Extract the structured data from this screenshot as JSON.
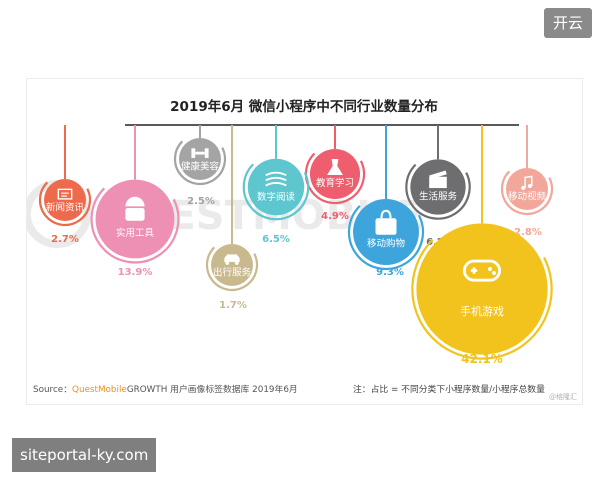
{
  "header": {
    "button_label": "开云"
  },
  "footer": {
    "link_text": "siteportal-ky.com"
  },
  "chart_data": {
    "type": "bubble",
    "title": "2019年6月 微信小程序中不同行业数量分布",
    "unit": "%",
    "categories": [
      "新闻资讯",
      "实用工具",
      "健康美容",
      "出行服务",
      "数字阅读",
      "教育学习",
      "移动购物",
      "生活服务",
      "手机游戏",
      "移动视频"
    ],
    "values": [
      2.7,
      13.9,
      2.5,
      1.7,
      6.5,
      4.9,
      9.3,
      6.2,
      42.1,
      2.8
    ],
    "colors": [
      "#ee6a4d",
      "#ee8fb4",
      "#a4a4a4",
      "#c9b98f",
      "#5ec6cf",
      "#ee5e6e",
      "#3da5dc",
      "#6e6e70",
      "#f3c31d",
      "#f2a79a"
    ],
    "icons": [
      "news-icon",
      "android-icon",
      "dumbbell-icon",
      "car-icon",
      "book-icon",
      "dress-icon",
      "bag-icon",
      "clapper-icon",
      "gamepad-icon",
      "music-icon"
    ],
    "source": "Source：QuestMobileGROWTH 用户画像标签数据库 2019年6月",
    "source_prefix": "Source：",
    "source_brand": "QuestMobile",
    "source_rest": "GROWTH 用户画像标签数据库 2019年6月",
    "note": "注：占比 = 不同分类下小程序数量/小程序总数量",
    "watermark": "@格隆汇"
  }
}
